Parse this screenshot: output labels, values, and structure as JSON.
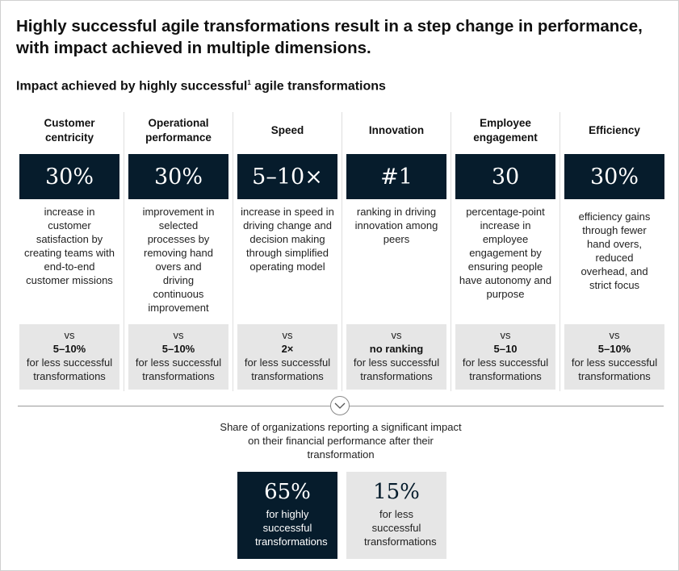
{
  "title": "Highly successful agile transformations result in a step change in performance, with impact achieved in multiple dimensions.",
  "subtitle": {
    "text": "Impact achieved by highly successful",
    "footnote_marker": "1",
    "text_after": " agile transformations"
  },
  "columns": [
    {
      "header": "Customer centricity",
      "stat": "30%",
      "description": "increase in customer satisfaction by creating teams with end-to-end customer missions",
      "vs_label": "vs",
      "comparison_value": "5–10%",
      "comparison_note": "for less successful transformations"
    },
    {
      "header": "Operational performance",
      "stat": "30%",
      "description": "improvement in selected processes by removing hand overs and driving continuous improvement",
      "vs_label": "vs",
      "comparison_value": "5–10%",
      "comparison_note": "for less successful transformations"
    },
    {
      "header": "Speed",
      "stat": "5–10×",
      "description": "increase in speed in driving change and decision making through simplified operating model",
      "vs_label": "vs",
      "comparison_value": "2×",
      "comparison_note": "for less successful transformations"
    },
    {
      "header": "Innovation",
      "stat": "#1",
      "description": "ranking in driving innovation among peers",
      "vs_label": "vs",
      "comparison_value": "no ranking",
      "comparison_note": "for less successful transformations"
    },
    {
      "header": "Employee engagement",
      "stat": "30",
      "description": "percentage-point increase in employee engagement by ensuring people have autonomy and purpose",
      "vs_label": "vs",
      "comparison_value": "5–10",
      "comparison_note": "for less successful transformations"
    },
    {
      "header": "Efficiency",
      "stat": "30%",
      "description": "efficiency gains through fewer hand overs, reduced overhead, and strict focus",
      "vs_label": "vs",
      "comparison_value": "5–10%",
      "comparison_note": "for less successful transformations"
    }
  ],
  "share": {
    "text": "Share of organizations reporting a significant impact on their financial performance after their transformation",
    "highly": {
      "value": "65%",
      "label": "for highly successful transformations"
    },
    "less": {
      "value": "15%",
      "label": "for less successful transformations"
    }
  },
  "icons": {
    "divider": "chevron-down-icon"
  },
  "colors": {
    "dark": "#061c2c",
    "light_gray": "#e6e6e6"
  }
}
